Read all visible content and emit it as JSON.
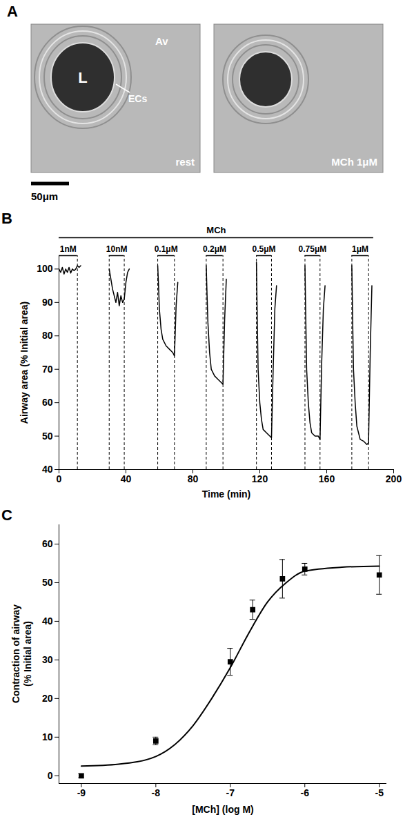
{
  "chart_data": [
    {
      "type": "image",
      "panel": "A",
      "images": [
        {
          "caption": "rest",
          "labels": {
            "lumen": "L",
            "alveoli": "Av",
            "cells": "ECs"
          }
        },
        {
          "caption": "MCh 1μM"
        }
      ],
      "scale_bar": "50μm"
    },
    {
      "type": "line",
      "panel": "B",
      "x_label": "Time (min)",
      "y_label": "Airway area (% Initial area)",
      "treatment": {
        "label": "MCh",
        "start": 0,
        "end": 188
      },
      "doses": [
        {
          "label": "1nM",
          "start": 0,
          "end": 11
        },
        {
          "label": "10nM",
          "start": 30,
          "end": 39
        },
        {
          "label": "0.1μM",
          "start": 59,
          "end": 69
        },
        {
          "label": "0.2μM",
          "start": 88,
          "end": 98
        },
        {
          "label": "0.5μM",
          "start": 118,
          "end": 127
        },
        {
          "label": "0.75μM",
          "start": 147,
          "end": 156
        },
        {
          "label": "1μM",
          "start": 175,
          "end": 185
        }
      ],
      "x": [
        0,
        1,
        2,
        3,
        4,
        5,
        6,
        7,
        8,
        9,
        10,
        11,
        12,
        13,
        20,
        30,
        31,
        32,
        33,
        34,
        35,
        36,
        37,
        38,
        39,
        40,
        41,
        42,
        50,
        59,
        59.5,
        60,
        61,
        62,
        64,
        66,
        68,
        69,
        70,
        71,
        80,
        88,
        88.5,
        89,
        90,
        91,
        93,
        95,
        97,
        98,
        99,
        100,
        110,
        118,
        118.5,
        119,
        120,
        121,
        122,
        124,
        126,
        127,
        128,
        129,
        130,
        140,
        147,
        147.5,
        148,
        149,
        150,
        151,
        153,
        155,
        156,
        157,
        158,
        159,
        170,
        175,
        175.5,
        176,
        177,
        178,
        180,
        182,
        184,
        185,
        186,
        187
      ],
      "values": [
        100,
        99,
        100.5,
        98.5,
        100,
        99,
        100.5,
        98.8,
        100,
        99.5,
        100,
        101,
        100.5,
        101,
        null,
        100,
        97,
        94,
        92,
        90,
        93,
        89,
        92,
        90,
        91,
        96,
        99,
        100,
        null,
        101,
        95,
        88,
        82,
        79,
        77,
        76,
        75,
        74,
        89,
        96,
        null,
        101,
        92,
        84,
        75,
        70,
        68,
        67,
        66,
        65.5,
        85,
        97,
        null,
        102,
        85,
        70,
        60,
        55,
        52,
        51,
        50,
        49.5,
        70,
        88,
        95,
        null,
        101,
        85,
        70,
        60,
        54,
        51,
        50,
        50,
        49,
        72,
        88,
        95,
        null,
        101,
        85,
        70,
        60,
        53,
        49,
        48.5,
        47.5,
        48,
        75,
        95
      ],
      "color": "#000000",
      "xlim": [
        0,
        200
      ],
      "xticks": [
        0,
        40,
        80,
        120,
        160,
        200
      ],
      "ylim": [
        40,
        104
      ],
      "yticks": [
        40,
        50,
        60,
        70,
        80,
        90,
        100
      ]
    },
    {
      "type": "scatter",
      "panel": "C",
      "x_label": "[MCh] (log M)",
      "y_label": "Contraction of airway (% Initial area)",
      "x": [
        -9,
        -8,
        -7,
        -6.7,
        -6.3,
        -6,
        -5
      ],
      "values": [
        0,
        9,
        29.5,
        43,
        51,
        53.5,
        52
      ],
      "errors": [
        0.5,
        1,
        3.5,
        2.5,
        5,
        1.5,
        5
      ],
      "fit": {
        "x": [
          -9,
          -8.5,
          -8,
          -7.75,
          -7.5,
          -7.25,
          -7,
          -6.75,
          -6.5,
          -6.25,
          -6,
          -5.5,
          -5
        ],
        "values": [
          2.5,
          3,
          5,
          8,
          13,
          20,
          28,
          37,
          45,
          50,
          53,
          54,
          54.3
        ]
      },
      "marker": "square",
      "color": "#000000",
      "xlim": [
        -9.3,
        -4.9
      ],
      "xticks": [
        -9,
        -8,
        -7,
        -6,
        -5
      ],
      "ylim": [
        -2,
        65
      ],
      "yticks": [
        0,
        10,
        20,
        30,
        40,
        50,
        60
      ]
    }
  ]
}
